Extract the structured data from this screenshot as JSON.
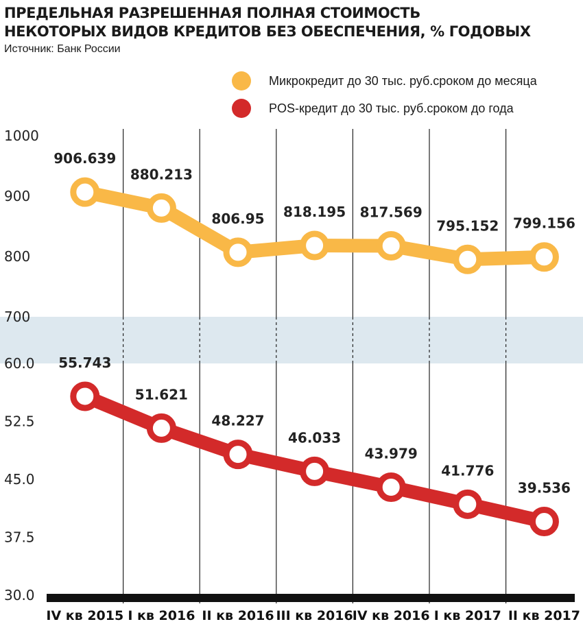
{
  "header": {
    "title_line1": "ПРЕДЕЛЬНАЯ РАЗРЕШЕННАЯ ПОЛНАЯ СТОИМОСТЬ",
    "title_line2": "НЕКОТОРЫХ ВИДОВ КРЕДИТОВ БЕЗ ОБЕСПЕЧЕНИЯ, % ГОДОВЫХ",
    "source": "Источник: Банк России"
  },
  "colors": {
    "micro": "#f9b847",
    "pos": "#d32a2a",
    "band": "#dde8ef",
    "grid": "#222222"
  },
  "chart_data": {
    "type": "line",
    "title": "ПРЕДЕЛЬНАЯ РАЗРЕШЕННАЯ ПОЛНАЯ СТОИМОСТЬ НЕКОТОРЫХ ВИДОВ КРЕДИТОВ БЕЗ ОБЕСПЕЧЕНИЯ, % ГОДОВЫХ",
    "categories": [
      "IV кв 2015",
      "I кв 2016",
      "II кв 2016",
      "III кв 2016",
      "IV кв 2016",
      "I кв 2017",
      "II кв 2017"
    ],
    "series": [
      {
        "name": "Микрокредит до 30 тыс. руб.сроком до месяца",
        "values": [
          906.639,
          880.213,
          806.95,
          818.195,
          817.569,
          795.152,
          799.156
        ],
        "labels": [
          "906.639",
          "880.213",
          "806.95",
          "818.195",
          "817.569",
          "795.152",
          "799.156"
        ]
      },
      {
        "name": "POS-кредит до 30 тыс. руб.сроком до года",
        "values": [
          55.743,
          51.621,
          48.227,
          46.033,
          43.979,
          41.776,
          39.536
        ],
        "labels": [
          "55.743",
          "51.621",
          "48.227",
          "46.033",
          "43.979",
          "41.776",
          "39.536"
        ]
      }
    ],
    "axis_break": true,
    "upper_axis": {
      "ylim": [
        700,
        1000
      ],
      "ticks": [
        "1000",
        "900",
        "800",
        "700"
      ]
    },
    "lower_axis": {
      "ylim": [
        30,
        60
      ],
      "ticks": [
        "60.0",
        "52.5",
        "45.0",
        "37.5",
        "30.0"
      ]
    },
    "legend_position": "top-right",
    "grid": "vertical"
  }
}
